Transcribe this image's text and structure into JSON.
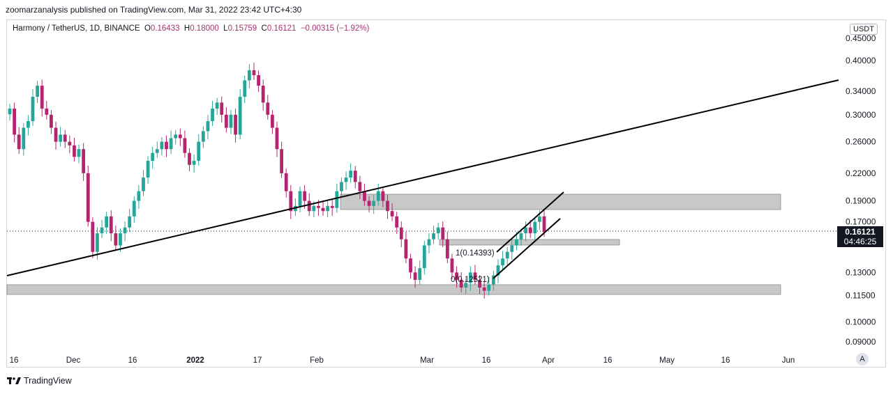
{
  "publisher": "zoomarzanalysis published on TradingView.com, Mar 31, 2022 23:42 UTC+4:30",
  "legend": {
    "symbol": "Harmony / TetherUS, 1D, BINANCE",
    "open_label": "O",
    "open": "0.16433",
    "high_label": "H",
    "high": "0.18000",
    "low_label": "L",
    "low": "0.15759",
    "close_label": "C",
    "close": "0.16121",
    "change": "−0.00315 (−1.92%)"
  },
  "unit_button": "USDT",
  "auto_button": "A",
  "brand": "TradingView",
  "price_label": {
    "value": "0.16121",
    "countdown": "04:46:25"
  },
  "annotations": [
    "1(0.14393)",
    "0(0.12521)"
  ],
  "colors": {
    "up": "#26a69a",
    "down": "#b5256f",
    "zone": "#c8c8c8",
    "line": "#000000"
  },
  "chart_data": {
    "type": "candlestick",
    "scale": "log",
    "ylim": [
      0.085,
      0.46
    ],
    "y_ticks": [
      "0.45000",
      "0.40000",
      "0.34000",
      "0.30000",
      "0.26000",
      "0.22000",
      "0.19000",
      "0.17000",
      "0.13000",
      "0.11500",
      "0.10000",
      "0.09000"
    ],
    "x_ticks": [
      "16",
      "Dec",
      "16",
      "2022",
      "17",
      "Feb",
      "Mar",
      "16",
      "Apr",
      "16",
      "May",
      "16",
      "Jun"
    ],
    "last_price": 0.16121,
    "closes": [
      0.31,
      0.27,
      0.25,
      0.28,
      0.29,
      0.33,
      0.35,
      0.31,
      0.3,
      0.28,
      0.26,
      0.27,
      0.26,
      0.255,
      0.24,
      0.25,
      0.22,
      0.17,
      0.145,
      0.16,
      0.165,
      0.175,
      0.16,
      0.15,
      0.16,
      0.165,
      0.175,
      0.19,
      0.2,
      0.215,
      0.235,
      0.245,
      0.25,
      0.26,
      0.25,
      0.265,
      0.27,
      0.265,
      0.245,
      0.23,
      0.235,
      0.26,
      0.275,
      0.29,
      0.31,
      0.32,
      0.3,
      0.28,
      0.3,
      0.27,
      0.33,
      0.36,
      0.38,
      0.37,
      0.35,
      0.32,
      0.3,
      0.28,
      0.25,
      0.22,
      0.2,
      0.18,
      0.185,
      0.2,
      0.19,
      0.18,
      0.185,
      0.183,
      0.18,
      0.185,
      0.183,
      0.2,
      0.21,
      0.215,
      0.223,
      0.21,
      0.2,
      0.19,
      0.185,
      0.19,
      0.2,
      0.19,
      0.18,
      0.175,
      0.165,
      0.155,
      0.14,
      0.13,
      0.125,
      0.133,
      0.15,
      0.155,
      0.16,
      0.165,
      0.155,
      0.14,
      0.13,
      0.125,
      0.12,
      0.123,
      0.13,
      0.125,
      0.12,
      0.118,
      0.122,
      0.128,
      0.135,
      0.14,
      0.145,
      0.15,
      0.155,
      0.16,
      0.165,
      0.16,
      0.17,
      0.175,
      0.161
    ]
  }
}
